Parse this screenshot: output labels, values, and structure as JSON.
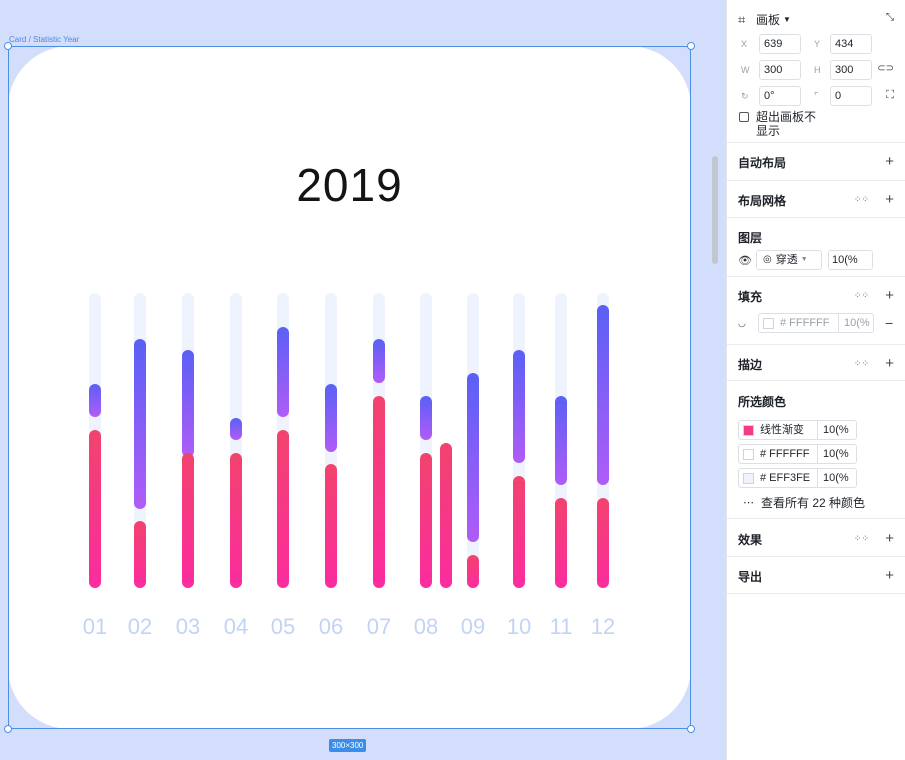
{
  "canvas": {
    "frame_label": "Card / Statistic Year",
    "size_badge": "300×300",
    "year": "2019"
  },
  "colors": {
    "track": "#eff3fe",
    "month_label": "#c3d3f5",
    "purple_top": "#5a60f5",
    "purple_bottom": "#b05cf7",
    "pink_top": "#f2436e",
    "pink_bottom": "#fb2c9f"
  },
  "chart_data": {
    "type": "bar",
    "categories": [
      "01",
      "02",
      "03",
      "04",
      "05",
      "06",
      "07",
      "08",
      "09",
      "10",
      "11",
      "12"
    ]
  },
  "panel": {
    "artboard": {
      "label": "画板",
      "x_label": "X",
      "x": "639",
      "y_label": "Y",
      "y": "434",
      "w_label": "W",
      "w": "300",
      "h_label": "H",
      "h": "300",
      "rotation": "0°",
      "radius": "0",
      "clip_label_1": "超出画板不",
      "clip_label_2": "显示"
    },
    "auto_layout": "自动布局",
    "layout_grid": "布局网格",
    "layer": {
      "title": "图层",
      "blend": "穿透",
      "opacity": "10(%"
    },
    "fill": {
      "title": "填充",
      "hex": "# FFFFFF",
      "opacity": "10(%"
    },
    "stroke": "描边",
    "selected_colors": {
      "title": "所选颜色",
      "items": [
        {
          "name": "线性渐变",
          "opacity": "10(%",
          "color": "#f23d86"
        },
        {
          "name": "# FFFFFF",
          "opacity": "10(%",
          "color": "#ffffff"
        },
        {
          "name": "# EFF3FE",
          "opacity": "10(%",
          "color": "#eff3fe"
        }
      ],
      "view_all": "查看所有 22 种颜色"
    },
    "effects": "效果",
    "export": "导出"
  }
}
